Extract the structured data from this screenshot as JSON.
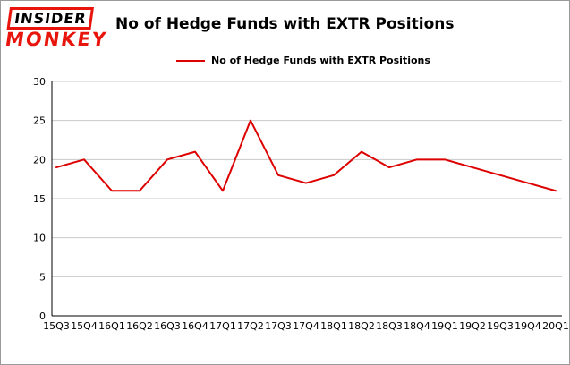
{
  "logo": {
    "line1": "INSIDER",
    "line2": "MONKEY"
  },
  "header": {
    "title": "No of Hedge Funds with EXTR Positions"
  },
  "legend": {
    "label": "No of Hedge Funds with EXTR Positions"
  },
  "colors": {
    "brand_red": "#e8150d",
    "line_red": "#dd0000",
    "grid_gray": "#c9c9c9",
    "axis_black": "#000000"
  },
  "chart_data": {
    "type": "line",
    "title": "No of Hedge Funds with EXTR Positions",
    "legend": "No of Hedge Funds with EXTR Positions",
    "categories": [
      "15Q3",
      "15Q4",
      "16Q1",
      "16Q2",
      "16Q3",
      "16Q4",
      "17Q1",
      "17Q2",
      "17Q3",
      "17Q4",
      "18Q1",
      "18Q2",
      "18Q3",
      "18Q4",
      "19Q1",
      "19Q2",
      "19Q3",
      "19Q4",
      "20Q1"
    ],
    "values": [
      19,
      20,
      16,
      16,
      20,
      21,
      16,
      25,
      18,
      17,
      18,
      21,
      19,
      20,
      20,
      19,
      18,
      17,
      16
    ],
    "xlabel": "",
    "ylabel": "",
    "ylim": [
      0,
      30
    ],
    "yticks": [
      0,
      5,
      10,
      15,
      20,
      25,
      30
    ],
    "grid": true,
    "legend_position": "top",
    "line_color": "#dd0000"
  }
}
